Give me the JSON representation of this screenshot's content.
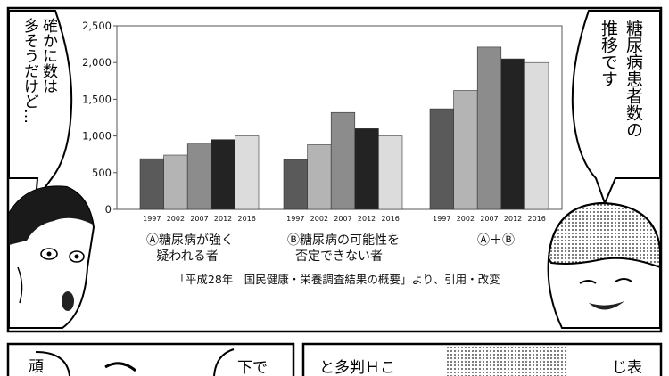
{
  "chart_data": {
    "type": "bar",
    "ylim": [
      0,
      2500
    ],
    "yticks": [
      "0",
      "500",
      "1,000",
      "1,500",
      "2,000",
      "2,500"
    ],
    "grid": false,
    "years": [
      "1997",
      "2002",
      "2007",
      "2012",
      "2016"
    ],
    "bar_colors": [
      "#5a5a5a",
      "#b4b4b4",
      "#8c8c8c",
      "#232323",
      "#dcdcdc"
    ],
    "groups": [
      {
        "label_line1": "Ⓐ糖尿病が強く",
        "label_line2": "疑われる者",
        "values": [
          690,
          740,
          890,
          950,
          1000
        ]
      },
      {
        "label_line1": "Ⓑ糖尿病の可能性を",
        "label_line2": "否定できない者",
        "values": [
          680,
          880,
          1320,
          1100,
          1000
        ]
      },
      {
        "label_line1": "Ⓐ＋Ⓑ",
        "label_line2": "",
        "values": [
          1370,
          1620,
          2210,
          2050,
          2000
        ]
      }
    ],
    "source_note": "「平成28年　国民健康・栄養調査結果の概要」より、引用・改変"
  },
  "manga": {
    "left_bubble_lines": [
      "確かに数は",
      "多そうだけど…"
    ],
    "right_bubble_lines": [
      "糖尿病患者数の",
      "推移です"
    ],
    "bottom_fragments": {
      "left_char": "頑",
      "middle": "下で",
      "center_text": "と多判Ｈこ",
      "right": "じ表"
    }
  }
}
